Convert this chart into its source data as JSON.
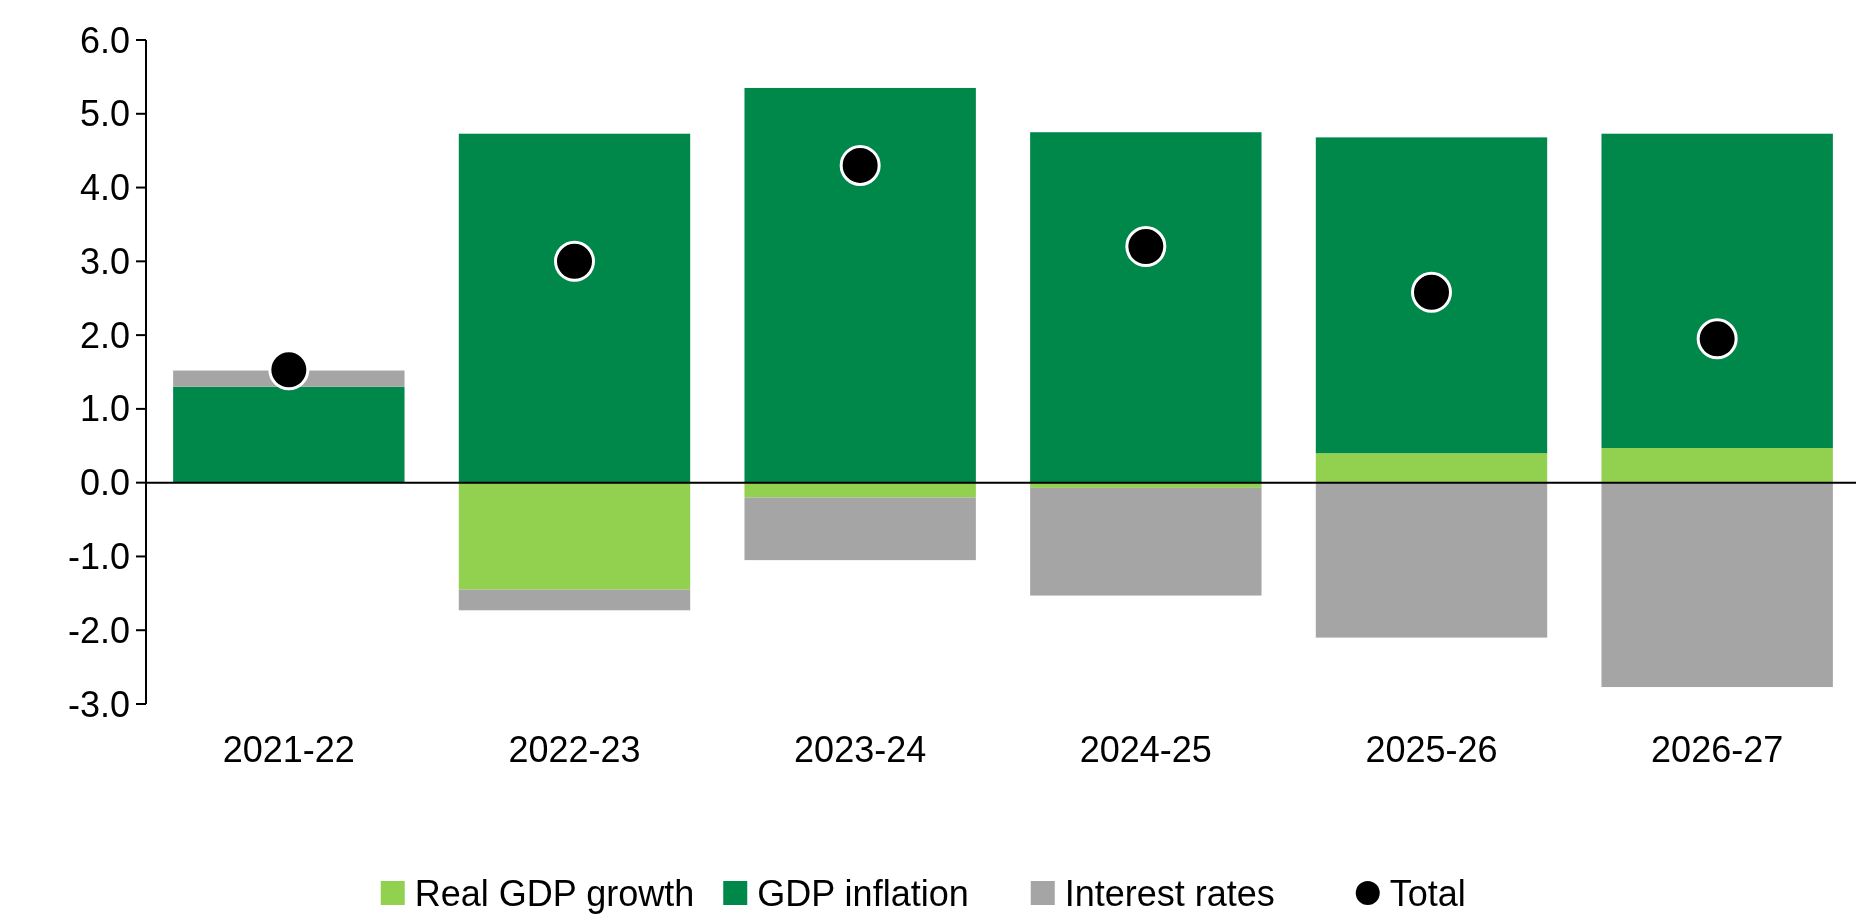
{
  "chart_data": {
    "type": "bar",
    "stacked": true,
    "categories": [
      "2021-22",
      "2022-23",
      "2023-24",
      "2024-25",
      "2025-26",
      "2026-27"
    ],
    "series": [
      {
        "name": "Real GDP growth",
        "color": "#92d050",
        "values": [
          0,
          -1.45,
          -0.2,
          -0.07,
          0.4,
          0.47
        ]
      },
      {
        "name": "GDP inflation",
        "color": "#00884b",
        "values": [
          1.3,
          4.73,
          5.35,
          4.75,
          4.28,
          4.26
        ]
      },
      {
        "name": "Interest rates",
        "color": "#a5a5a5",
        "values": [
          0.22,
          -0.28,
          -0.85,
          -1.46,
          -2.1,
          -2.77
        ]
      },
      {
        "name": "Total",
        "type": "scatter",
        "color": "#000000",
        "x": [
          "2021-22",
          "2022-23",
          "2023-24",
          "2024-25",
          "2025-26",
          "2026-27"
        ],
        "values": [
          1.53,
          3.0,
          4.3,
          3.2,
          2.58,
          1.95
        ]
      }
    ],
    "ylim": [
      -3,
      6
    ],
    "yticks": [
      {
        "value": -3,
        "label": "-3.0"
      },
      {
        "value": -2,
        "label": "-2.0"
      },
      {
        "value": -1,
        "label": "-1.0"
      },
      {
        "value": 0,
        "label": "0.0"
      },
      {
        "value": 1,
        "label": "1.0"
      },
      {
        "value": 2,
        "label": "2.0"
      },
      {
        "value": 3,
        "label": "3.0"
      },
      {
        "value": 4,
        "label": "4.0"
      },
      {
        "value": 5,
        "label": "5.0"
      },
      {
        "value": 6,
        "label": "6.0"
      }
    ],
    "legend": "bottom",
    "marker": "circle"
  }
}
